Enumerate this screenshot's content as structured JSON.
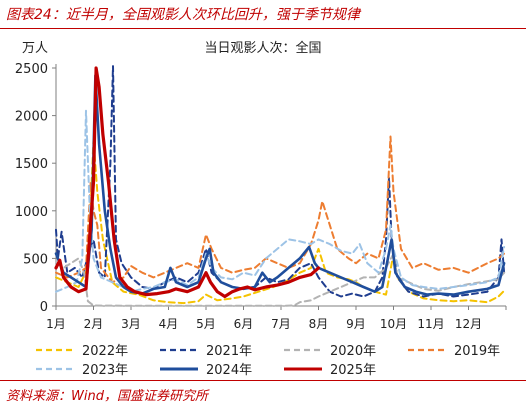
{
  "figure_title": "图表24：近半月，全国观影人次环比回升，强于季节规律",
  "source_note": "资料来源：Wind，国盛证券研究所",
  "chart_data": {
    "type": "line",
    "title": "当日观影人次：全国",
    "ylabel": "万人",
    "xlabel": "",
    "ylim": [
      0,
      2500
    ],
    "yticks": [
      0,
      500,
      1000,
      1500,
      2000,
      2500
    ],
    "xlim": [
      1,
      13
    ],
    "x_tick_labels": [
      "1月",
      "2月",
      "3月",
      "4月",
      "5月",
      "6月",
      "7月",
      "8月",
      "9月",
      "10月",
      "11月",
      "12月"
    ],
    "grid": false,
    "legend_position": "bottom",
    "series": [
      {
        "name": "2022年",
        "color": "#f5c200",
        "dash": "dash",
        "width": 2,
        "points": [
          [
            1.0,
            300
          ],
          [
            1.3,
            250
          ],
          [
            1.6,
            200
          ],
          [
            1.85,
            400
          ],
          [
            2.0,
            1750
          ],
          [
            2.1,
            1200
          ],
          [
            2.25,
            700
          ],
          [
            2.5,
            250
          ],
          [
            2.8,
            150
          ],
          [
            3.2,
            120
          ],
          [
            3.6,
            60
          ],
          [
            4.0,
            40
          ],
          [
            4.4,
            30
          ],
          [
            4.8,
            50
          ],
          [
            5.0,
            120
          ],
          [
            5.3,
            60
          ],
          [
            5.7,
            80
          ],
          [
            6.0,
            100
          ],
          [
            6.4,
            150
          ],
          [
            6.8,
            200
          ],
          [
            7.1,
            250
          ],
          [
            7.5,
            350
          ],
          [
            7.8,
            400
          ],
          [
            8.0,
            600
          ],
          [
            8.2,
            350
          ],
          [
            8.5,
            300
          ],
          [
            8.8,
            280
          ],
          [
            9.0,
            250
          ],
          [
            9.2,
            200
          ],
          [
            9.5,
            150
          ],
          [
            9.8,
            120
          ],
          [
            10.0,
            550
          ],
          [
            10.1,
            300
          ],
          [
            10.4,
            150
          ],
          [
            10.8,
            80
          ],
          [
            11.2,
            60
          ],
          [
            11.6,
            50
          ],
          [
            12.0,
            60
          ],
          [
            12.5,
            40
          ],
          [
            12.8,
            100
          ],
          [
            12.95,
            160
          ]
        ]
      },
      {
        "name": "2021年",
        "color": "#1f3d8f",
        "dash": "dash",
        "width": 2,
        "points": [
          [
            1.0,
            800
          ],
          [
            1.05,
            500
          ],
          [
            1.15,
            780
          ],
          [
            1.3,
            350
          ],
          [
            1.5,
            400
          ],
          [
            1.7,
            300
          ],
          [
            1.9,
            600
          ],
          [
            2.0,
            700
          ],
          [
            2.15,
            350
          ],
          [
            2.3,
            300
          ],
          [
            2.45,
            1500
          ],
          [
            2.52,
            2520
          ],
          [
            2.6,
            700
          ],
          [
            2.75,
            450
          ],
          [
            3.0,
            300
          ],
          [
            3.3,
            200
          ],
          [
            3.6,
            180
          ],
          [
            3.9,
            250
          ],
          [
            4.2,
            300
          ],
          [
            4.5,
            250
          ],
          [
            4.8,
            350
          ],
          [
            5.0,
            600
          ],
          [
            5.15,
            350
          ],
          [
            5.4,
            250
          ],
          [
            5.7,
            200
          ],
          [
            6.0,
            180
          ],
          [
            6.3,
            200
          ],
          [
            6.6,
            300
          ],
          [
            6.9,
            250
          ],
          [
            7.2,
            280
          ],
          [
            7.5,
            400
          ],
          [
            7.8,
            450
          ],
          [
            8.0,
            300
          ],
          [
            8.3,
            150
          ],
          [
            8.6,
            100
          ],
          [
            8.9,
            130
          ],
          [
            9.2,
            100
          ],
          [
            9.5,
            150
          ],
          [
            9.7,
            300
          ],
          [
            9.8,
            700
          ],
          [
            9.88,
            1350
          ],
          [
            9.95,
            700
          ],
          [
            10.1,
            300
          ],
          [
            10.4,
            150
          ],
          [
            10.8,
            100
          ],
          [
            11.2,
            130
          ],
          [
            11.6,
            100
          ],
          [
            12.0,
            120
          ],
          [
            12.5,
            150
          ],
          [
            12.8,
            300
          ],
          [
            12.88,
            700
          ],
          [
            12.95,
            350
          ]
        ]
      },
      {
        "name": "2020年",
        "color": "#b3b3b3",
        "dash": "dash",
        "width": 2,
        "points": [
          [
            1.0,
            450
          ],
          [
            1.2,
            400
          ],
          [
            1.4,
            450
          ],
          [
            1.6,
            500
          ],
          [
            1.75,
            350
          ],
          [
            1.85,
            50
          ],
          [
            2.0,
            5
          ],
          [
            3.0,
            2
          ],
          [
            4.0,
            2
          ],
          [
            5.0,
            2
          ],
          [
            6.0,
            2
          ],
          [
            7.0,
            2
          ],
          [
            7.35,
            5
          ],
          [
            7.5,
            40
          ],
          [
            7.8,
            60
          ],
          [
            8.0,
            100
          ],
          [
            8.3,
            150
          ],
          [
            8.6,
            200
          ],
          [
            8.9,
            250
          ],
          [
            9.2,
            300
          ],
          [
            9.5,
            300
          ],
          [
            9.8,
            400
          ],
          [
            10.0,
            550
          ],
          [
            10.1,
            300
          ],
          [
            10.4,
            250
          ],
          [
            10.8,
            180
          ],
          [
            11.2,
            160
          ],
          [
            11.6,
            200
          ],
          [
            12.0,
            230
          ],
          [
            12.5,
            260
          ],
          [
            12.8,
            280
          ],
          [
            12.95,
            350
          ]
        ]
      },
      {
        "name": "2019年",
        "color": "#ed7d31",
        "dash": "dash",
        "width": 2,
        "points": [
          [
            1.0,
            350
          ],
          [
            1.3,
            300
          ],
          [
            1.6,
            350
          ],
          [
            1.8,
            400
          ],
          [
            1.92,
            1300
          ],
          [
            2.0,
            1000
          ],
          [
            2.1,
            850
          ],
          [
            2.2,
            400
          ],
          [
            2.5,
            250
          ],
          [
            2.8,
            300
          ],
          [
            3.0,
            420
          ],
          [
            3.3,
            350
          ],
          [
            3.6,
            300
          ],
          [
            3.9,
            350
          ],
          [
            4.2,
            400
          ],
          [
            4.5,
            450
          ],
          [
            4.8,
            400
          ],
          [
            5.0,
            750
          ],
          [
            5.15,
            600
          ],
          [
            5.4,
            400
          ],
          [
            5.7,
            350
          ],
          [
            6.0,
            380
          ],
          [
            6.3,
            400
          ],
          [
            6.6,
            500
          ],
          [
            6.9,
            450
          ],
          [
            7.2,
            400
          ],
          [
            7.5,
            450
          ],
          [
            7.8,
            650
          ],
          [
            8.0,
            900
          ],
          [
            8.1,
            1100
          ],
          [
            8.3,
            850
          ],
          [
            8.5,
            600
          ],
          [
            8.8,
            500
          ],
          [
            9.0,
            450
          ],
          [
            9.3,
            550
          ],
          [
            9.6,
            500
          ],
          [
            9.8,
            800
          ],
          [
            9.92,
            1780
          ],
          [
            10.0,
            1200
          ],
          [
            10.2,
            600
          ],
          [
            10.5,
            400
          ],
          [
            10.8,
            450
          ],
          [
            11.2,
            380
          ],
          [
            11.6,
            400
          ],
          [
            12.0,
            350
          ],
          [
            12.5,
            450
          ],
          [
            12.8,
            500
          ],
          [
            12.95,
            550
          ]
        ]
      },
      {
        "name": "2023年",
        "color": "#9dc3e6",
        "dash": "dash",
        "width": 2,
        "points": [
          [
            1.0,
            150
          ],
          [
            1.3,
            200
          ],
          [
            1.55,
            250
          ],
          [
            1.7,
            500
          ],
          [
            1.8,
            2050
          ],
          [
            1.9,
            1000
          ],
          [
            2.0,
            500
          ],
          [
            2.2,
            300
          ],
          [
            2.5,
            250
          ],
          [
            2.8,
            200
          ],
          [
            3.0,
            150
          ],
          [
            3.3,
            180
          ],
          [
            3.6,
            200
          ],
          [
            3.9,
            250
          ],
          [
            4.2,
            280
          ],
          [
            4.5,
            220
          ],
          [
            4.8,
            300
          ],
          [
            5.0,
            550
          ],
          [
            5.15,
            400
          ],
          [
            5.4,
            300
          ],
          [
            5.7,
            280
          ],
          [
            6.0,
            350
          ],
          [
            6.3,
            320
          ],
          [
            6.6,
            500
          ],
          [
            6.9,
            600
          ],
          [
            7.2,
            700
          ],
          [
            7.5,
            680
          ],
          [
            7.8,
            650
          ],
          [
            8.0,
            700
          ],
          [
            8.3,
            650
          ],
          [
            8.6,
            580
          ],
          [
            8.9,
            550
          ],
          [
            9.1,
            650
          ],
          [
            9.3,
            450
          ],
          [
            9.6,
            350
          ],
          [
            9.8,
            600
          ],
          [
            9.92,
            850
          ],
          [
            10.0,
            600
          ],
          [
            10.2,
            300
          ],
          [
            10.5,
            220
          ],
          [
            10.8,
            200
          ],
          [
            11.2,
            180
          ],
          [
            11.6,
            200
          ],
          [
            12.0,
            220
          ],
          [
            12.5,
            250
          ],
          [
            12.8,
            300
          ],
          [
            12.95,
            620
          ]
        ]
      },
      {
        "name": "2024年",
        "color": "#1f4e9c",
        "dash": "solid",
        "width": 2.6,
        "points": [
          [
            1.0,
            550
          ],
          [
            1.2,
            350
          ],
          [
            1.4,
            300
          ],
          [
            1.6,
            250
          ],
          [
            1.8,
            200
          ],
          [
            1.95,
            800
          ],
          [
            2.05,
            2420
          ],
          [
            2.15,
            1700
          ],
          [
            2.3,
            1000
          ],
          [
            2.45,
            600
          ],
          [
            2.6,
            300
          ],
          [
            2.8,
            200
          ],
          [
            3.0,
            150
          ],
          [
            3.3,
            130
          ],
          [
            3.6,
            180
          ],
          [
            3.9,
            200
          ],
          [
            4.05,
            400
          ],
          [
            4.2,
            250
          ],
          [
            4.5,
            200
          ],
          [
            4.8,
            250
          ],
          [
            5.0,
            500
          ],
          [
            5.1,
            600
          ],
          [
            5.2,
            350
          ],
          [
            5.4,
            250
          ],
          [
            5.7,
            200
          ],
          [
            6.0,
            180
          ],
          [
            6.3,
            200
          ],
          [
            6.5,
            350
          ],
          [
            6.7,
            250
          ],
          [
            6.9,
            300
          ],
          [
            7.2,
            400
          ],
          [
            7.5,
            500
          ],
          [
            7.75,
            620
          ],
          [
            7.9,
            450
          ],
          [
            8.0,
            400
          ],
          [
            8.3,
            350
          ],
          [
            8.6,
            300
          ],
          [
            8.9,
            250
          ],
          [
            9.2,
            200
          ],
          [
            9.5,
            150
          ],
          [
            9.7,
            200
          ],
          [
            9.85,
            500
          ],
          [
            9.95,
            700
          ],
          [
            10.05,
            350
          ],
          [
            10.3,
            200
          ],
          [
            10.6,
            150
          ],
          [
            10.9,
            120
          ],
          [
            11.2,
            130
          ],
          [
            11.6,
            120
          ],
          [
            12.0,
            150
          ],
          [
            12.5,
            180
          ],
          [
            12.8,
            220
          ],
          [
            12.95,
            450
          ]
        ]
      },
      {
        "name": "2025年",
        "color": "#c00000",
        "dash": "solid",
        "width": 3.2,
        "points": [
          [
            1.0,
            400
          ],
          [
            1.1,
            480
          ],
          [
            1.2,
            300
          ],
          [
            1.4,
            200
          ],
          [
            1.6,
            150
          ],
          [
            1.8,
            180
          ],
          [
            2.0,
            1300
          ],
          [
            2.07,
            2500
          ],
          [
            2.15,
            2300
          ],
          [
            2.25,
            1800
          ],
          [
            2.4,
            1300
          ],
          [
            2.55,
            700
          ],
          [
            2.7,
            300
          ],
          [
            2.9,
            200
          ],
          [
            3.1,
            150
          ],
          [
            3.4,
            120
          ],
          [
            3.7,
            130
          ],
          [
            4.0,
            150
          ],
          [
            4.2,
            180
          ],
          [
            4.5,
            150
          ],
          [
            4.8,
            200
          ],
          [
            5.0,
            350
          ],
          [
            5.12,
            250
          ],
          [
            5.3,
            150
          ],
          [
            5.5,
            100
          ],
          [
            5.7,
            150
          ],
          [
            5.9,
            180
          ],
          [
            6.1,
            200
          ],
          [
            6.3,
            170
          ],
          [
            6.6,
            200
          ],
          [
            6.9,
            220
          ],
          [
            7.2,
            250
          ],
          [
            7.5,
            300
          ],
          [
            7.8,
            330
          ],
          [
            8.0,
            400
          ]
        ]
      }
    ]
  }
}
